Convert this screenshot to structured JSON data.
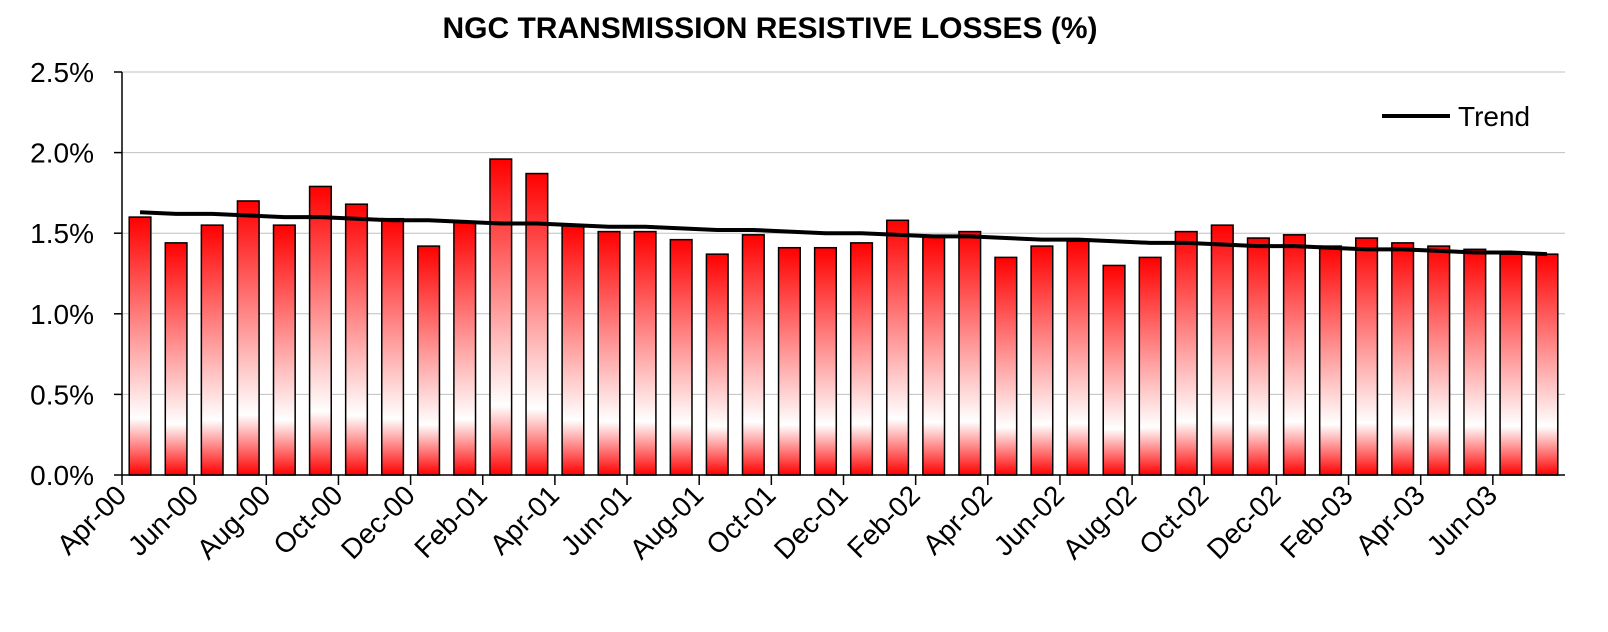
{
  "chart_data": {
    "type": "bar",
    "title": "NGC TRANSMISSION RESISTIVE LOSSES (%)",
    "categories": [
      "Apr-00",
      null,
      "Jun-00",
      null,
      "Aug-00",
      null,
      "Oct-00",
      null,
      "Dec-00",
      null,
      "Feb-01",
      null,
      "Apr-01",
      null,
      "Jun-01",
      null,
      "Aug-01",
      null,
      "Oct-01",
      null,
      "Dec-01",
      null,
      "Feb-02",
      null,
      "Apr-02",
      null,
      "Jun-02",
      null,
      "Aug-02",
      null,
      "Oct-02",
      null,
      "Dec-02",
      null,
      "Feb-03",
      null,
      "Apr-03",
      null,
      "Jun-03",
      null
    ],
    "series": [
      {
        "type": "bar",
        "color": "#ff0000",
        "values": [
          1.6,
          1.44,
          1.55,
          1.7,
          1.55,
          1.79,
          1.68,
          1.59,
          1.42,
          1.57,
          1.96,
          1.87,
          1.55,
          1.51,
          1.51,
          1.46,
          1.37,
          1.49,
          1.41,
          1.41,
          1.44,
          1.58,
          1.48,
          1.51,
          1.35,
          1.42,
          1.45,
          1.3,
          1.35,
          1.51,
          1.55,
          1.47,
          1.49,
          1.42,
          1.47,
          1.44,
          1.42,
          1.4,
          1.37,
          1.37
        ]
      },
      {
        "type": "line",
        "name": "Trend",
        "color": "#000000",
        "values": [
          1.63,
          1.62,
          1.62,
          1.61,
          1.6,
          1.6,
          1.59,
          1.58,
          1.58,
          1.57,
          1.56,
          1.56,
          1.55,
          1.54,
          1.54,
          1.53,
          1.52,
          1.52,
          1.51,
          1.5,
          1.5,
          1.49,
          1.48,
          1.48,
          1.47,
          1.46,
          1.46,
          1.45,
          1.44,
          1.44,
          1.43,
          1.42,
          1.42,
          1.41,
          1.4,
          1.4,
          1.39,
          1.38,
          1.38,
          1.37
        ]
      }
    ],
    "ylim": [
      0,
      2.5
    ],
    "yticks": [
      {
        "value": 0,
        "label": "0.0%"
      },
      {
        "value": 0.5,
        "label": "0.5%"
      },
      {
        "value": 1,
        "label": "1.0%"
      },
      {
        "value": 1.5,
        "label": "1.5%"
      },
      {
        "value": 2,
        "label": "2.0%"
      },
      {
        "value": 2.5,
        "label": "2.5%"
      }
    ],
    "grid": true,
    "legend": "top-right"
  }
}
